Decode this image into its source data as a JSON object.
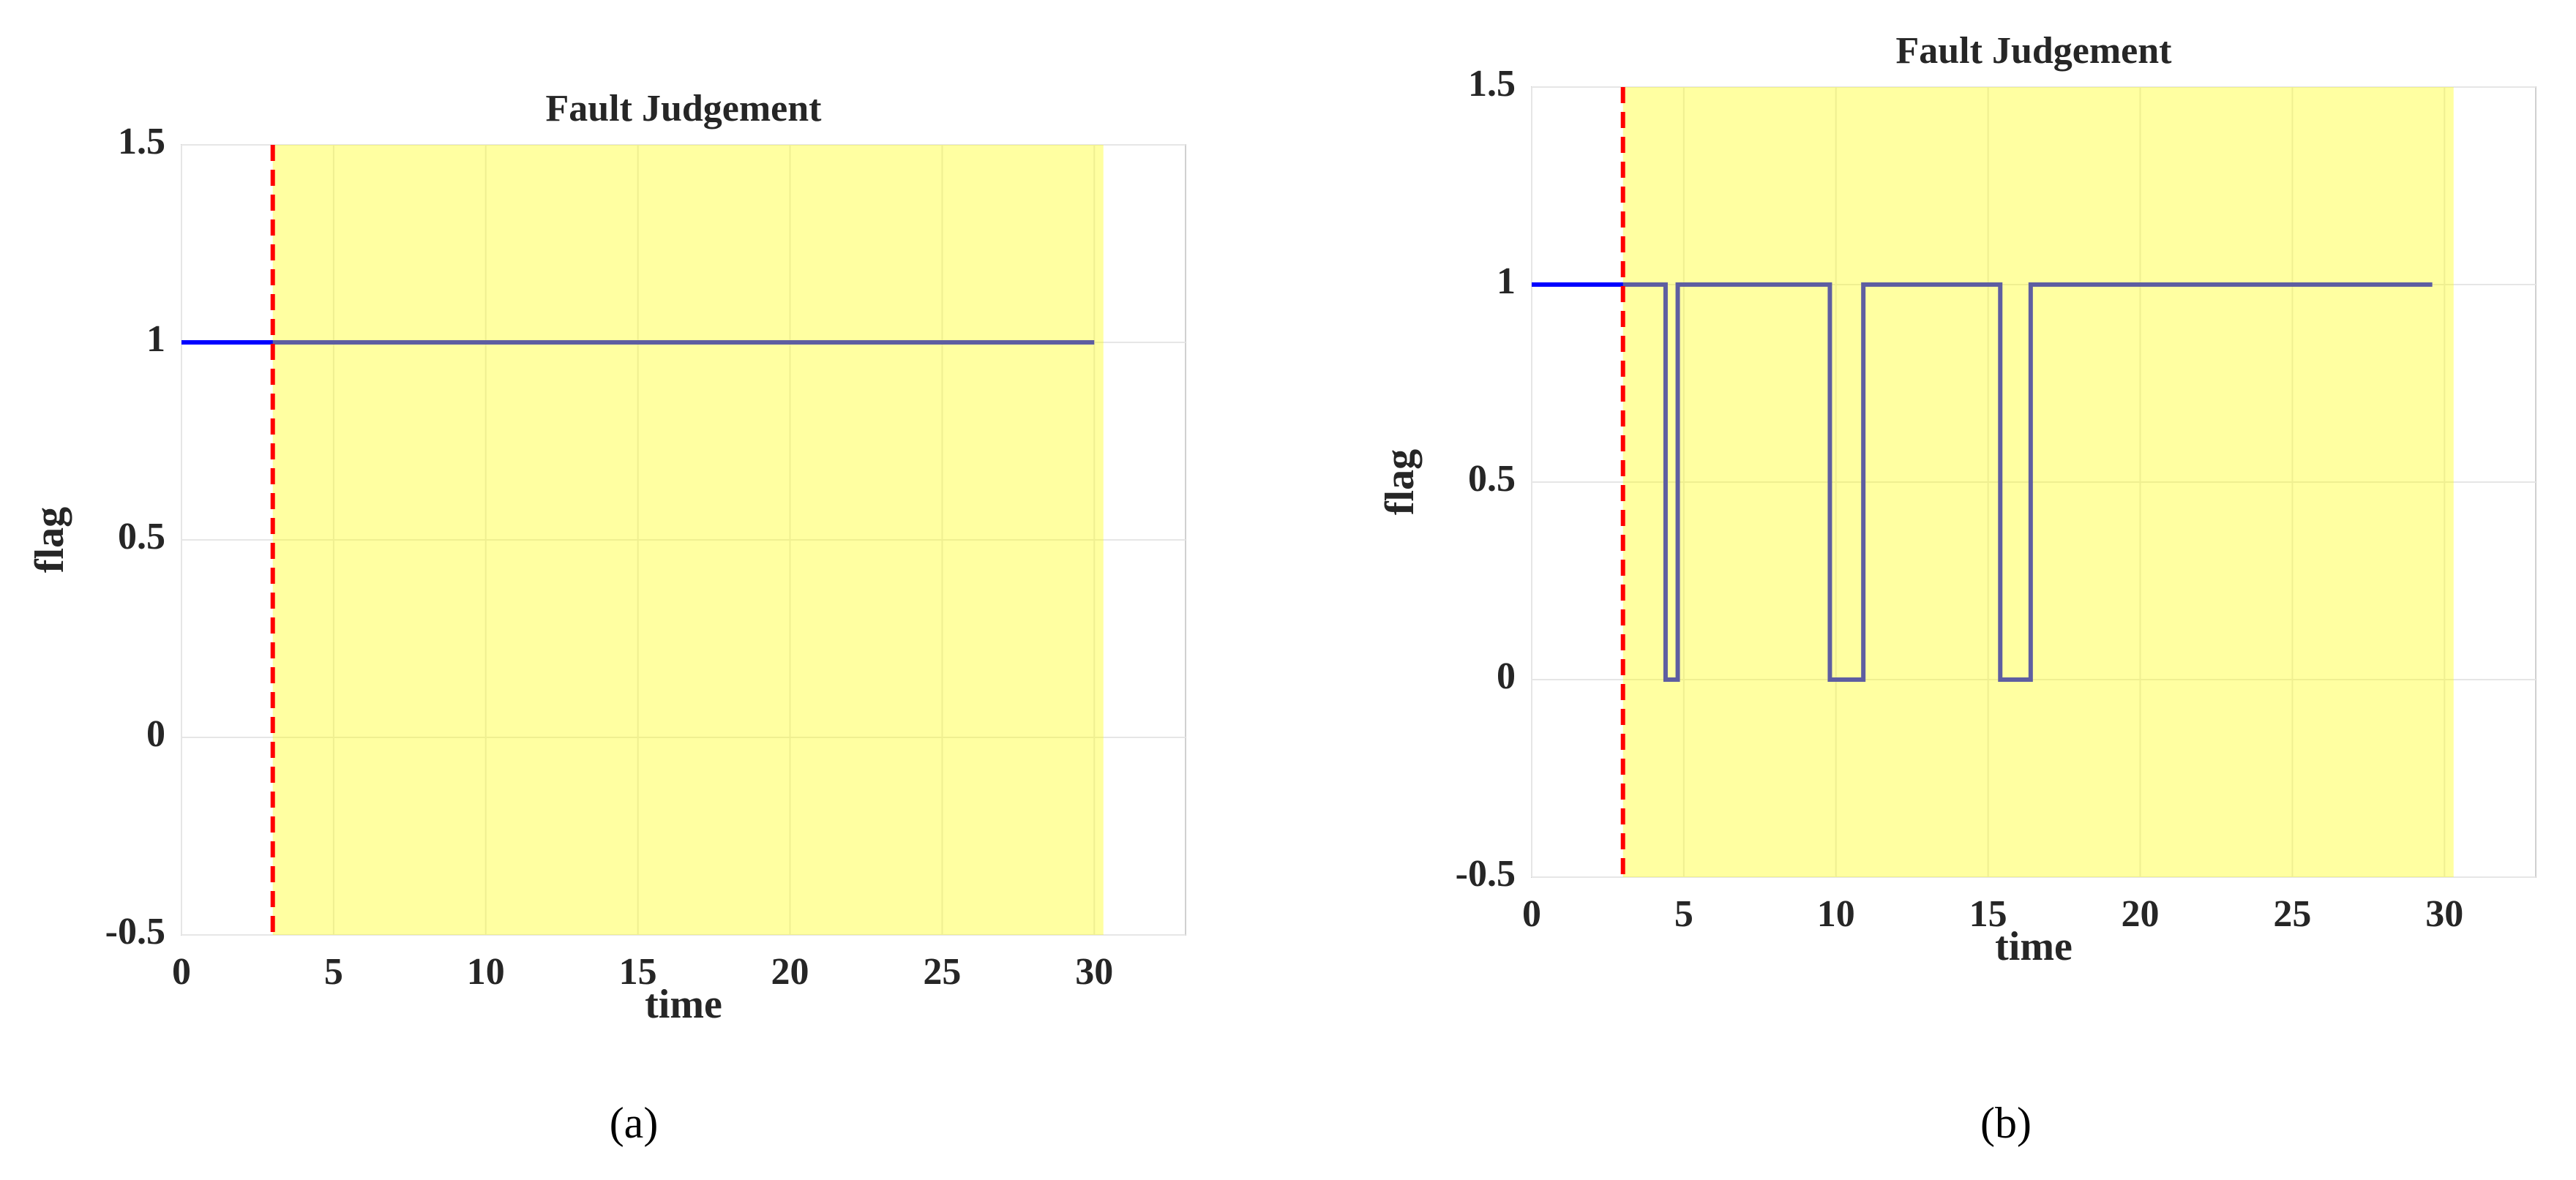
{
  "chart_data": [
    {
      "type": "line",
      "title": "Fault Judgement",
      "x_label": "time",
      "y_label": "flag",
      "caption": "(a)",
      "xlim": [
        0,
        33
      ],
      "ylim": [
        -0.5,
        1.5
      ],
      "xticks": [
        0,
        5,
        10,
        15,
        20,
        25,
        30
      ],
      "yticks": [
        -0.5,
        0,
        0.5,
        1,
        1.5
      ],
      "grid": true,
      "fault_time": 3,
      "fault_time_color": "#ff0000",
      "fault_region": [
        3,
        30.3
      ],
      "fault_region_color": "#ffff00",
      "x": [
        0,
        30
      ],
      "series": [
        {
          "color": "#0000ff",
          "values": [
            1,
            1
          ]
        }
      ]
    },
    {
      "type": "line",
      "title": "Fault Judgement",
      "x_label": "time",
      "y_label": "flag",
      "caption": "(b)",
      "xlim": [
        0,
        33
      ],
      "ylim": [
        -0.5,
        1.5
      ],
      "xticks": [
        0,
        5,
        10,
        15,
        20,
        25,
        30
      ],
      "yticks": [
        -0.5,
        0,
        0.5,
        1,
        1.5
      ],
      "grid": true,
      "fault_time": 3,
      "fault_time_color": "#ff0000",
      "fault_region": [
        3,
        30.3
      ],
      "fault_region_color": "#ffff00",
      "x": [
        0,
        4.4,
        4.4,
        4.8,
        4.8,
        9.8,
        9.8,
        10.9,
        10.9,
        15.4,
        15.4,
        16.4,
        16.4,
        29.6
      ],
      "series": [
        {
          "color": "#0000ff",
          "values": [
            1,
            1,
            0,
            0,
            1,
            1,
            0,
            0,
            1,
            1,
            0,
            0,
            1,
            1
          ]
        }
      ]
    }
  ]
}
